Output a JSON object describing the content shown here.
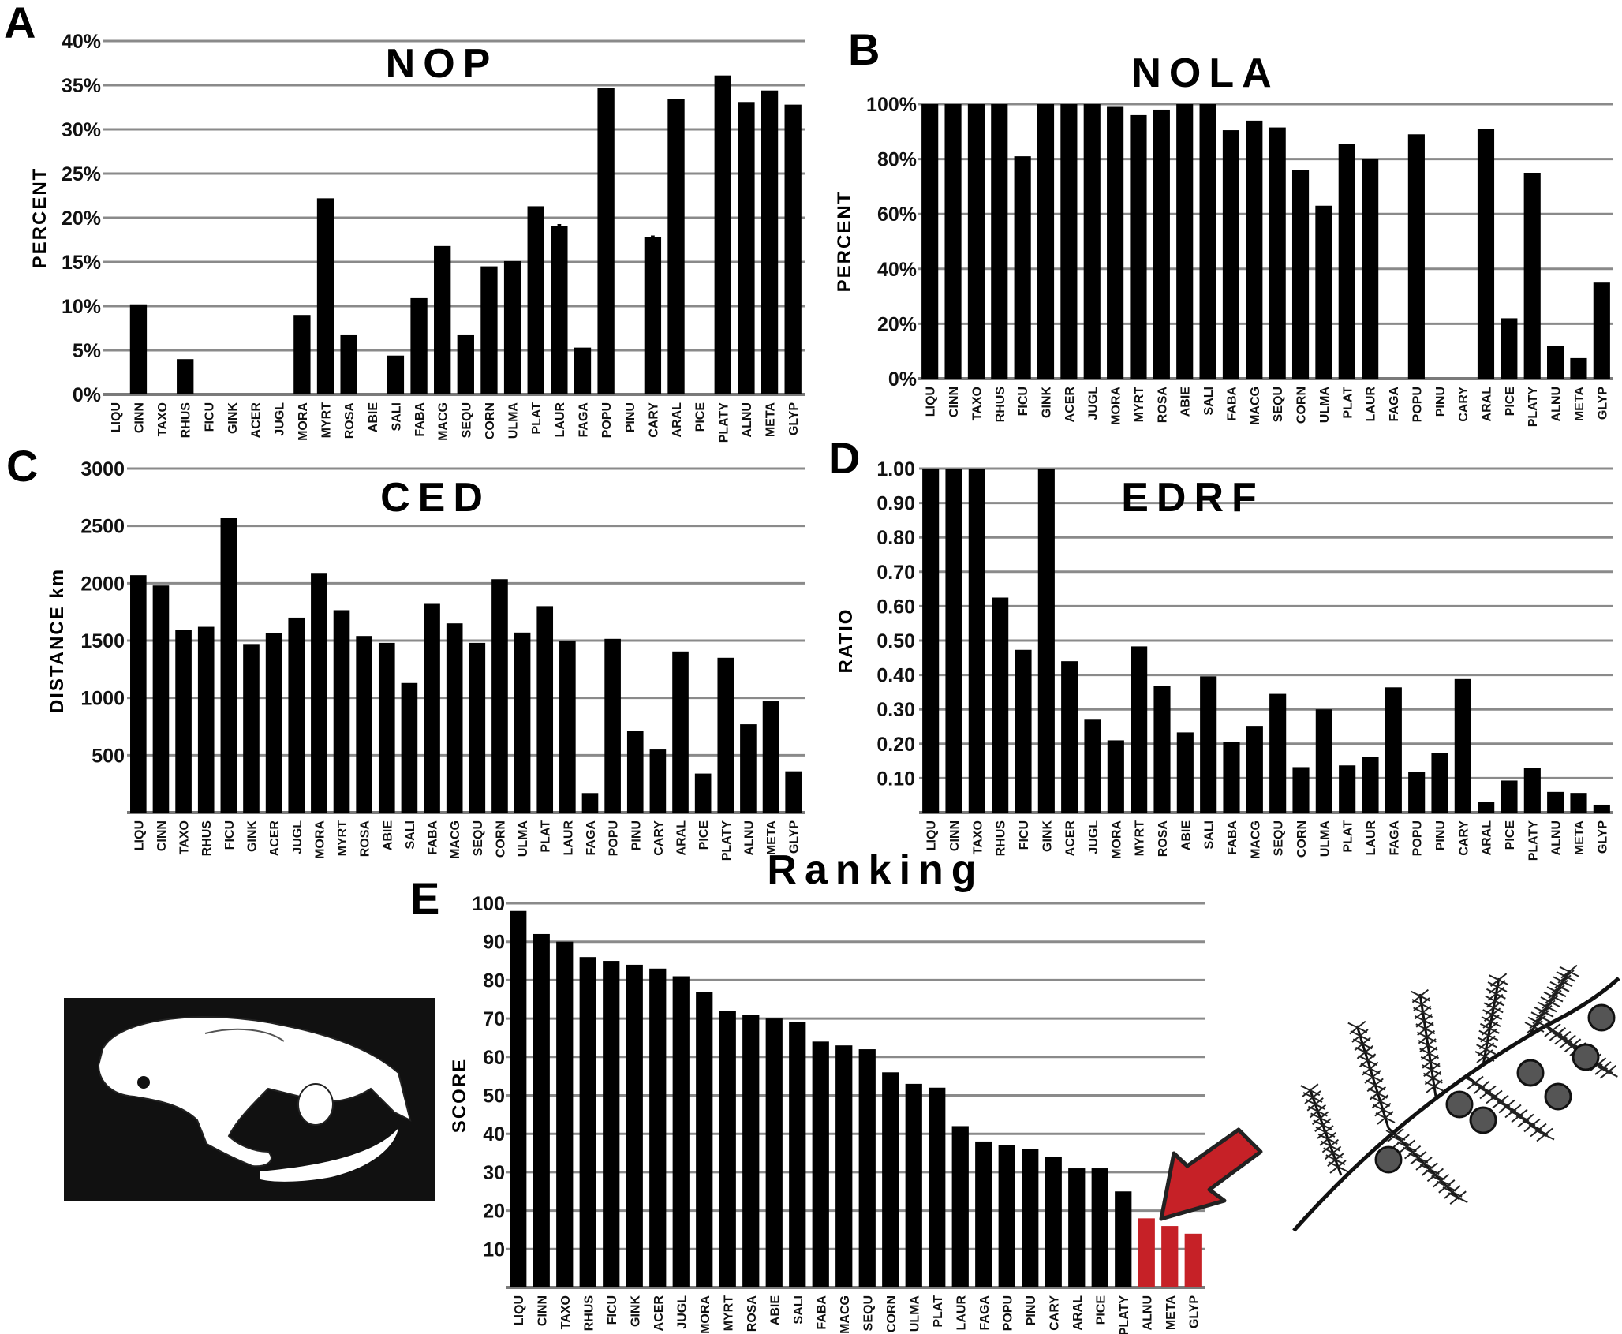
{
  "chart_data": [
    {
      "panel": "A",
      "type": "bar",
      "title": "NOP",
      "xlabel": "",
      "ylabel": "PERCENT",
      "ylim": [
        0,
        40
      ],
      "grid": true,
      "yticks": [
        0,
        5,
        10,
        15,
        20,
        25,
        30,
        35,
        40
      ],
      "ytick_labels": [
        "0%",
        "5%",
        "10%",
        "15%",
        "20%",
        "25%",
        "30%",
        "35%",
        "40%"
      ],
      "categories": [
        "LIQU",
        "CINN",
        "TAXO",
        "RHUS",
        "FICU",
        "GINK",
        "ACER",
        "JUGL",
        "MORA",
        "MYRT",
        "ROSA",
        "ABIE",
        "SALI",
        "FABA",
        "MACG",
        "SEQU",
        "CORN",
        "ULMA",
        "PLAT",
        "LAUR",
        "FAGA",
        "POPU",
        "PINU",
        "CARY",
        "ARAL",
        "PICE",
        "PLATY",
        "ALNU",
        "META",
        "GLYP"
      ],
      "values": [
        0,
        10.2,
        0,
        4,
        0,
        0,
        0,
        0,
        9,
        22.2,
        6.7,
        0,
        4.4,
        10.9,
        16.8,
        6.7,
        14.5,
        15.1,
        21.3,
        19.1,
        5.3,
        34.7,
        0,
        17.8,
        33.4,
        0,
        36.1,
        33.1,
        34.4,
        32.8
      ],
      "annotations": [
        {
          "category": "LAUR",
          "text": "*"
        },
        {
          "category": "CARY",
          "text": "*"
        }
      ],
      "bar_color": "#000000"
    },
    {
      "panel": "B",
      "type": "bar",
      "title": "NOLA",
      "xlabel": "",
      "ylabel": "PERCENT",
      "ylim": [
        0,
        100
      ],
      "grid": true,
      "yticks": [
        0,
        20,
        40,
        60,
        80,
        100
      ],
      "ytick_labels": [
        "0%",
        "20%",
        "40%",
        "60%",
        "80%",
        "100%"
      ],
      "categories": [
        "LIQU",
        "CINN",
        "TAXO",
        "RHUS",
        "FICU",
        "GINK",
        "ACER",
        "JUGL",
        "MORA",
        "MYRT",
        "ROSA",
        "ABIE",
        "SALI",
        "FABA",
        "MACG",
        "SEQU",
        "CORN",
        "ULMA",
        "PLAT",
        "LAUR",
        "FAGA",
        "POPU",
        "PINU",
        "CARY",
        "ARAL",
        "PICE",
        "PLATY",
        "ALNU",
        "META",
        "GLYP"
      ],
      "values": [
        100,
        100,
        100,
        100,
        81,
        100,
        100,
        100,
        99,
        96,
        98,
        100,
        100,
        90.5,
        94,
        91.5,
        76,
        63,
        85.5,
        80,
        0,
        89,
        0,
        0,
        91,
        22,
        75,
        12,
        7.5,
        35
      ],
      "annotations": [],
      "bar_color": "#000000"
    },
    {
      "panel": "C",
      "type": "bar",
      "title": "CED",
      "xlabel": "",
      "ylabel": "DISTANCE km",
      "ylim": [
        0,
        3000
      ],
      "grid": true,
      "yticks": [
        500,
        1000,
        1500,
        2000,
        2500,
        3000
      ],
      "ytick_labels": [
        "500",
        "1000",
        "1500",
        "2000",
        "2500",
        "3000"
      ],
      "categories": [
        "LIQU",
        "CINN",
        "TAXO",
        "RHUS",
        "FICU",
        "GINK",
        "ACER",
        "JUGL",
        "MORA",
        "MYRT",
        "ROSA",
        "ABIE",
        "SALI",
        "FABA",
        "MACG",
        "SEQU",
        "CORN",
        "ULMA",
        "PLAT",
        "LAUR",
        "FAGA",
        "POPU",
        "PINU",
        "CARY",
        "ARAL",
        "PICE",
        "PLATY",
        "ALNU",
        "META",
        "GLYP"
      ],
      "values": [
        2070,
        1980,
        1590,
        1620,
        2570,
        1470,
        1565,
        1700,
        2090,
        1765,
        1540,
        1480,
        1130,
        1820,
        1650,
        1480,
        2035,
        1570,
        1800,
        1495,
        170,
        1515,
        710,
        550,
        1405,
        340,
        1350,
        770,
        970,
        360
      ],
      "annotations": [],
      "bar_color": "#000000"
    },
    {
      "panel": "D",
      "type": "bar",
      "title": "EDRF",
      "xlabel": "",
      "ylabel": "RATIO",
      "ylim": [
        0,
        1
      ],
      "grid": true,
      "yticks": [
        0.1,
        0.2,
        0.3,
        0.4,
        0.5,
        0.6,
        0.7,
        0.8,
        0.9,
        1.0
      ],
      "ytick_labels": [
        "0.10",
        "0.20",
        "0.30",
        "0.40",
        "0.50",
        "0.60",
        "0.70",
        "0.80",
        "0.90",
        "1.00"
      ],
      "categories": [
        "LIQU",
        "CINN",
        "TAXO",
        "RHUS",
        "FICU",
        "GINK",
        "ACER",
        "JUGL",
        "MORA",
        "MYRT",
        "ROSA",
        "ABIE",
        "SALI",
        "FABA",
        "MACG",
        "SEQU",
        "CORN",
        "ULMA",
        "PLAT",
        "LAUR",
        "FAGA",
        "POPU",
        "PINU",
        "CARY",
        "ARAL",
        "PICE",
        "PLATY",
        "ALNU",
        "META",
        "GLYP"
      ],
      "values": [
        1,
        1,
        1,
        0.625,
        0.473,
        1,
        0.44,
        0.27,
        0.21,
        0.483,
        0.368,
        0.233,
        0.396,
        0.206,
        0.252,
        0.345,
        0.132,
        0.3,
        0.137,
        0.161,
        0.364,
        0.117,
        0.174,
        0.388,
        0.032,
        0.093,
        0.129,
        0.06,
        0.057,
        0.023
      ],
      "annotations": [],
      "bar_color": "#000000"
    },
    {
      "panel": "E",
      "type": "bar",
      "title": "Ranking",
      "xlabel": "",
      "ylabel": "SCORE",
      "ylim": [
        0,
        100
      ],
      "grid": true,
      "yticks": [
        10,
        20,
        30,
        40,
        50,
        60,
        70,
        80,
        90,
        100
      ],
      "ytick_labels": [
        "10",
        "20",
        "30",
        "40",
        "50",
        "60",
        "70",
        "80",
        "90",
        "100"
      ],
      "categories": [
        "LIQU",
        "CINN",
        "TAXO",
        "RHUS",
        "FICU",
        "GINK",
        "ACER",
        "JUGL",
        "MORA",
        "MYRT",
        "ROSA",
        "ABIE",
        "SALI",
        "FABA",
        "MACG",
        "SEQU",
        "CORN",
        "ULMA",
        "PLAT",
        "LAUR",
        "FAGA",
        "POPU",
        "PINU",
        "CARY",
        "ARAL",
        "PICE",
        "PLATY",
        "ALNU",
        "META",
        "GLYP"
      ],
      "values": [
        98,
        92,
        90,
        86,
        85,
        84,
        83,
        81,
        77,
        72,
        71,
        70,
        69,
        64,
        63,
        62,
        56,
        53,
        52,
        42,
        38,
        37,
        36,
        34,
        31,
        31,
        25,
        18,
        16,
        14
      ],
      "annotations": [],
      "bar_color": "#000000",
      "highlight": {
        "categories": [
          "ALNU",
          "META",
          "GLYP"
        ],
        "color": "#c62127"
      },
      "pointer_arrow_color": "#c62127"
    }
  ],
  "illustrations": {
    "left": "skull-illustration",
    "right": "conifer-branch-illustration"
  }
}
